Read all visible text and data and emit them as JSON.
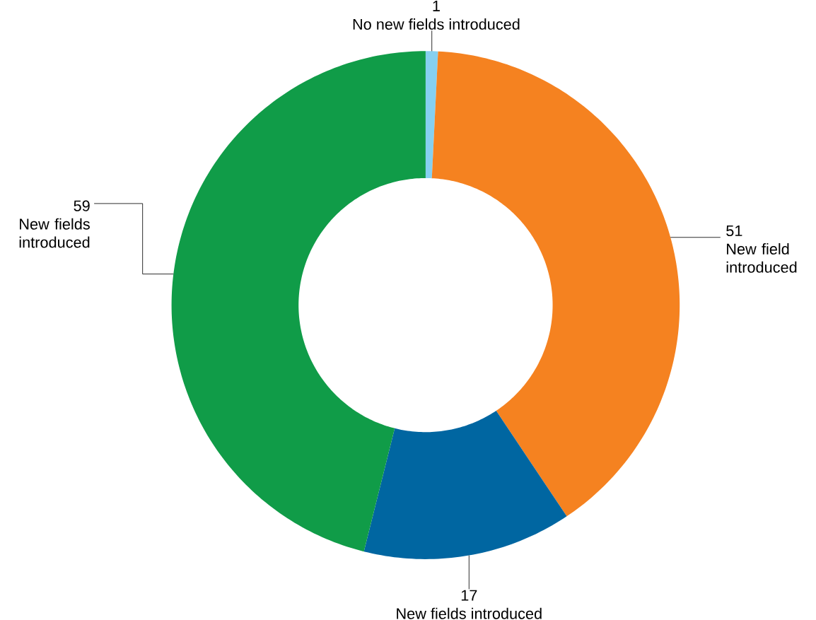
{
  "chart_data": {
    "type": "donut",
    "categories": [
      "No new fields introduced",
      "New field introduced",
      "New fields introduced",
      "New fields introduced"
    ],
    "values": [
      1,
      51,
      17,
      59
    ],
    "colors": [
      "#86d0f0",
      "#f58220",
      "#0066a1",
      "#109c48"
    ],
    "data_labels": true
  }
}
